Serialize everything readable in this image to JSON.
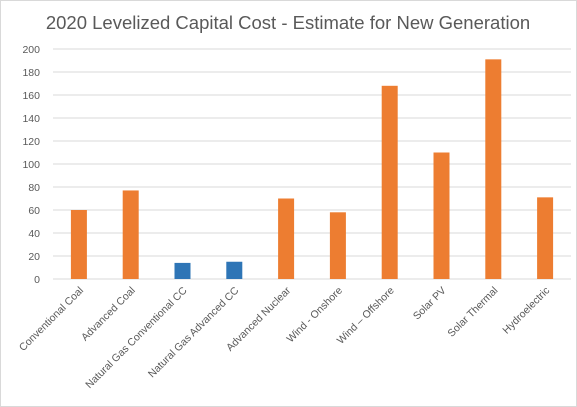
{
  "chart_data": {
    "type": "bar",
    "title": "2020 Levelized Capital Cost - Estimate for New Generation",
    "categories": [
      "Conventional Coal",
      "Advanced Coal",
      "Natural Gas Conventional CC",
      "Natural Gas Advanced CC",
      "Advanced Nuclear",
      "Wind - Onshore",
      "Wind – Offshore",
      "Solar PV",
      "Solar Thermal",
      "Hydroelectric"
    ],
    "values": [
      60,
      77,
      14,
      15,
      70,
      58,
      168,
      110,
      191,
      71
    ],
    "bar_colors": [
      "#ed7d31",
      "#ed7d31",
      "#2e75b6",
      "#2e75b6",
      "#ed7d31",
      "#ed7d31",
      "#ed7d31",
      "#ed7d31",
      "#ed7d31",
      "#ed7d31"
    ],
    "ylim": [
      0,
      200
    ],
    "yticks": [
      0,
      20,
      40,
      60,
      80,
      100,
      120,
      140,
      160,
      180,
      200
    ],
    "xlabel": "",
    "ylabel": "",
    "grid": true,
    "legend": "none",
    "colors": {
      "orange": "#ed7d31",
      "blue": "#2e75b6",
      "gridline": "#d9d9d9",
      "text": "#595959"
    }
  }
}
